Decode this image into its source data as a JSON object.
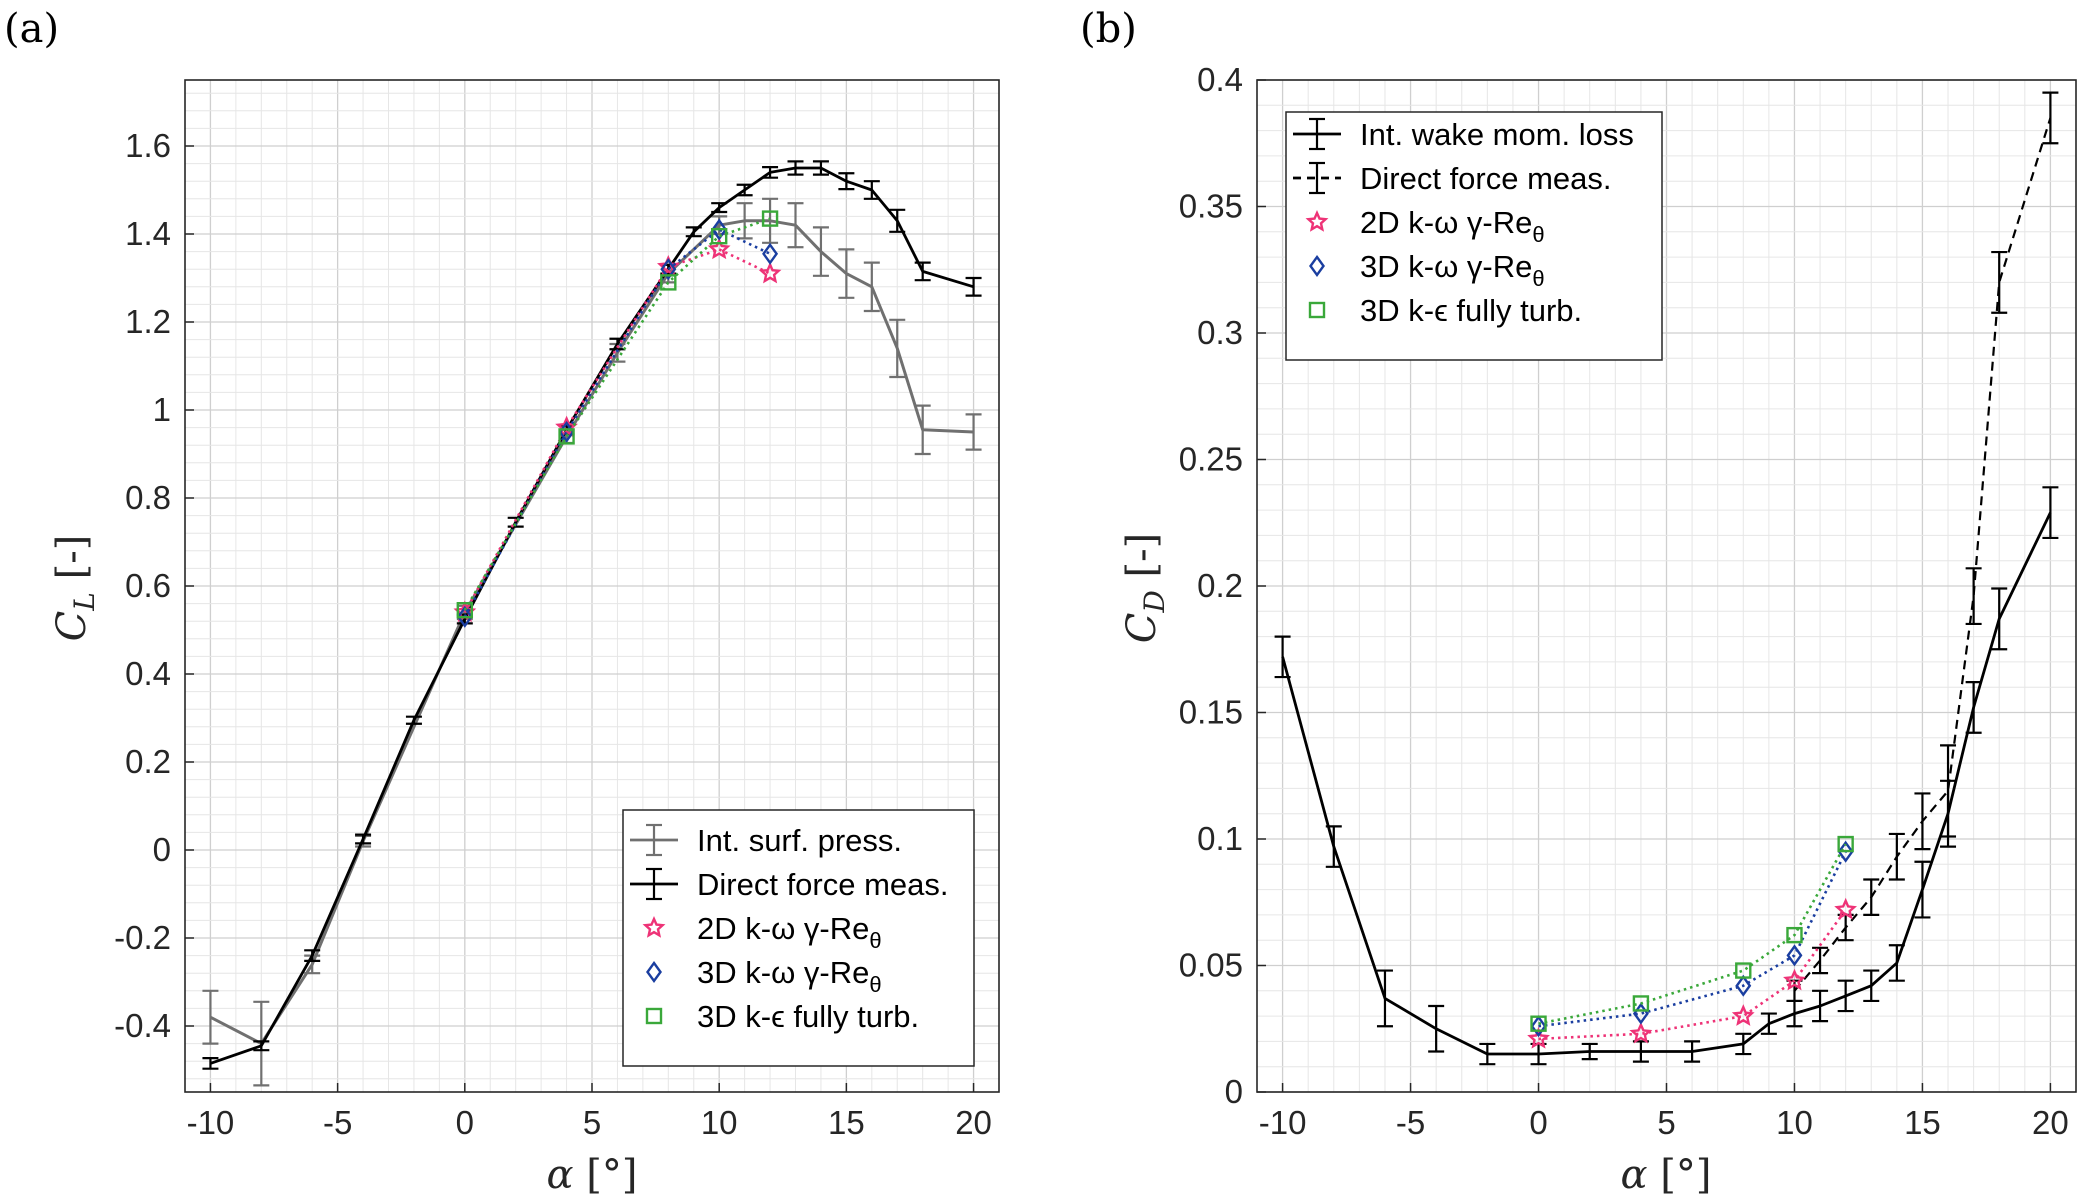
{
  "chart_data": [
    {
      "type": "line",
      "panel_label": "(a)",
      "xlabel": "α [°]",
      "ylabel": "C_L [-]",
      "xlim": [
        -11,
        21
      ],
      "ylim": [
        -0.55,
        1.75
      ],
      "xticks": [
        -10,
        -5,
        0,
        5,
        10,
        15,
        20
      ],
      "xtick_labels": [
        "-10",
        "-5",
        "0",
        "5",
        "10",
        "15",
        "20"
      ],
      "yticks": [
        -0.4,
        -0.2,
        0,
        0.2,
        0.4,
        0.6,
        0.8,
        1,
        1.2,
        1.4,
        1.6
      ],
      "ytick_labels": [
        "-0.4",
        "-0.2",
        "0",
        "0.2",
        "0.4",
        "0.6",
        "0.8",
        "1",
        "1.2",
        "1.4",
        "1.6"
      ],
      "grid": true,
      "legend_position": "bottom-right",
      "series": [
        {
          "name": "Int. surf. press.",
          "style": "solid-errorbar",
          "color": "#707070",
          "x": [
            -10,
            -8,
            -6,
            -4,
            0,
            4,
            6,
            8,
            10,
            11,
            12,
            13,
            14,
            15,
            16,
            17,
            18,
            20
          ],
          "y": [
            -0.38,
            -0.44,
            -0.26,
            0.02,
            0.54,
            0.94,
            1.13,
            1.31,
            1.42,
            1.43,
            1.43,
            1.42,
            1.36,
            1.31,
            1.28,
            1.14,
            0.955,
            0.95
          ],
          "err": [
            0.06,
            0.095,
            0.02,
            0.012,
            0.015,
            0.015,
            0.02,
            0.02,
            0.02,
            0.04,
            0.05,
            0.05,
            0.055,
            0.055,
            0.055,
            0.065,
            0.055,
            0.04
          ]
        },
        {
          "name": "Direct force meas.",
          "style": "solid-errorbar",
          "color": "#000000",
          "x": [
            -10,
            -8,
            -6,
            -4,
            -2,
            0,
            2,
            4,
            6,
            8,
            9,
            10,
            11,
            12,
            13,
            14,
            15,
            16,
            17,
            18,
            20
          ],
          "y": [
            -0.485,
            -0.445,
            -0.24,
            0.025,
            0.295,
            0.525,
            0.745,
            0.955,
            1.15,
            1.32,
            1.405,
            1.46,
            1.5,
            1.54,
            1.55,
            1.55,
            1.52,
            1.5,
            1.43,
            1.315,
            1.28
          ],
          "err": [
            0.012,
            0.01,
            0.012,
            0.01,
            0.008,
            0.01,
            0.01,
            0.01,
            0.012,
            0.01,
            0.01,
            0.01,
            0.012,
            0.012,
            0.015,
            0.015,
            0.018,
            0.02,
            0.025,
            0.02,
            0.02
          ]
        },
        {
          "name": "2D k-ω γ-Re_θ",
          "style": "dotted-star",
          "color": "#ee3377",
          "x": [
            0,
            4,
            8,
            10,
            12
          ],
          "y": [
            0.54,
            0.96,
            1.325,
            1.365,
            1.31
          ]
        },
        {
          "name": "3D k-ω γ-Re_θ",
          "style": "dotted-diamond",
          "color": "#1a3ea0",
          "x": [
            0,
            4,
            8,
            10,
            12
          ],
          "y": [
            0.53,
            0.95,
            1.32,
            1.41,
            1.355
          ]
        },
        {
          "name": "3D k-ϵ fully turb.",
          "style": "dotted-square",
          "color": "#3aa83a",
          "x": [
            0,
            4,
            8,
            10,
            12
          ],
          "y": [
            0.545,
            0.94,
            1.29,
            1.395,
            1.435
          ]
        }
      ]
    },
    {
      "type": "line",
      "panel_label": "(b)",
      "xlabel": "α [°]",
      "ylabel": "C_D [-]",
      "xlim": [
        -11,
        21
      ],
      "ylim": [
        0,
        0.4
      ],
      "xticks": [
        -10,
        -5,
        0,
        5,
        10,
        15,
        20
      ],
      "xtick_labels": [
        "-10",
        "-5",
        "0",
        "5",
        "10",
        "15",
        "20"
      ],
      "yticks": [
        0,
        0.05,
        0.1,
        0.15,
        0.2,
        0.25,
        0.3,
        0.35,
        0.4
      ],
      "ytick_labels": [
        "0",
        "0.05",
        "0.1",
        "0.15",
        "0.2",
        "0.25",
        "0.3",
        "0.35",
        "0.4"
      ],
      "grid": true,
      "legend_position": "top-left",
      "series": [
        {
          "name": "Int. wake mom. loss",
          "style": "solid-errorbar",
          "color": "#000000",
          "x": [
            -10,
            -8,
            -6,
            -4,
            -2,
            0,
            2,
            4,
            6,
            8,
            9,
            10,
            11,
            12,
            13,
            14,
            15,
            16,
            17,
            18,
            20
          ],
          "y": [
            0.172,
            0.097,
            0.037,
            0.025,
            0.015,
            0.015,
            0.016,
            0.016,
            0.016,
            0.019,
            0.027,
            0.031,
            0.034,
            0.038,
            0.042,
            0.051,
            0.08,
            0.11,
            0.152,
            0.187,
            0.229
          ],
          "err": [
            0.008,
            0.008,
            0.011,
            0.009,
            0.004,
            0.004,
            0.003,
            0.004,
            0.004,
            0.004,
            0.004,
            0.005,
            0.006,
            0.006,
            0.006,
            0.007,
            0.011,
            0.013,
            0.01,
            0.012,
            0.01
          ]
        },
        {
          "name": "Direct force meas.",
          "style": "dashed-errorbar",
          "color": "#000000",
          "x": [
            10,
            11,
            12,
            13,
            14,
            15,
            16,
            17,
            18,
            20
          ],
          "y": [
            0.04,
            0.052,
            0.065,
            0.077,
            0.093,
            0.107,
            0.119,
            0.196,
            0.32,
            0.385
          ],
          "err": [
            0.004,
            0.005,
            0.005,
            0.007,
            0.009,
            0.011,
            0.018,
            0.011,
            0.012,
            0.01
          ]
        },
        {
          "name": "2D k-ω γ-Re_θ",
          "style": "dotted-star",
          "color": "#ee3377",
          "x": [
            0,
            4,
            8,
            10,
            12
          ],
          "y": [
            0.021,
            0.023,
            0.03,
            0.044,
            0.072
          ]
        },
        {
          "name": "3D k-ω γ-Re_θ",
          "style": "dotted-diamond",
          "color": "#1a3ea0",
          "x": [
            0,
            4,
            8,
            10,
            12
          ],
          "y": [
            0.026,
            0.031,
            0.042,
            0.054,
            0.095
          ]
        },
        {
          "name": "3D k-ϵ fully turb.",
          "style": "dotted-square",
          "color": "#3aa83a",
          "x": [
            0,
            4,
            8,
            10,
            12
          ],
          "y": [
            0.027,
            0.035,
            0.048,
            0.062,
            0.098
          ]
        }
      ]
    }
  ]
}
